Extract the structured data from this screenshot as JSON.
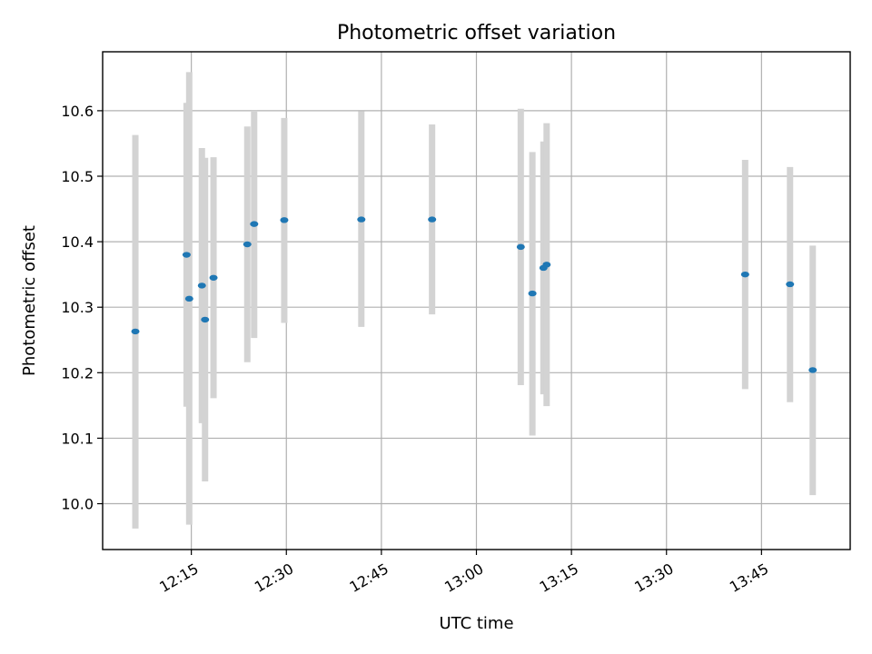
{
  "chart_data": {
    "type": "scatter",
    "title": "Photometric offset variation",
    "xlabel": "UTC time",
    "ylabel": "Photometric offset",
    "xlim": [
      "12:01",
      "13:59"
    ],
    "ylim": [
      9.93,
      10.69
    ],
    "x_ticks": [
      "12:15",
      "12:30",
      "12:45",
      "13:00",
      "13:15",
      "13:30",
      "13:45"
    ],
    "y_ticks": [
      "10.0",
      "10.1",
      "10.2",
      "10.3",
      "10.4",
      "10.5",
      "10.6"
    ],
    "grid": true,
    "colors": {
      "point": "#1f77b4",
      "errorbar": "#d3d3d3",
      "grid": "#b0b0b0"
    },
    "points": [
      {
        "x": "12:06:10",
        "y": 10.263,
        "ymin": 9.962,
        "ymax": 10.563
      },
      {
        "x": "12:14:15",
        "y": 10.38,
        "ymin": 10.148,
        "ymax": 10.612
      },
      {
        "x": "12:14:40",
        "y": 10.313,
        "ymin": 9.968,
        "ymax": 10.659
      },
      {
        "x": "12:16:40",
        "y": 10.333,
        "ymin": 10.123,
        "ymax": 10.543
      },
      {
        "x": "12:17:10",
        "y": 10.281,
        "ymin": 10.034,
        "ymax": 10.528
      },
      {
        "x": "12:18:30",
        "y": 10.345,
        "ymin": 10.161,
        "ymax": 10.529
      },
      {
        "x": "12:23:50",
        "y": 10.396,
        "ymin": 10.216,
        "ymax": 10.576
      },
      {
        "x": "12:24:55",
        "y": 10.427,
        "ymin": 10.253,
        "ymax": 10.6
      },
      {
        "x": "12:29:40",
        "y": 10.433,
        "ymin": 10.276,
        "ymax": 10.589
      },
      {
        "x": "12:41:50",
        "y": 10.434,
        "ymin": 10.27,
        "ymax": 10.599
      },
      {
        "x": "12:53:00",
        "y": 10.434,
        "ymin": 10.289,
        "ymax": 10.579
      },
      {
        "x": "13:07:00",
        "y": 10.392,
        "ymin": 10.181,
        "ymax": 10.603
      },
      {
        "x": "13:08:50",
        "y": 10.321,
        "ymin": 10.104,
        "ymax": 10.537
      },
      {
        "x": "13:10:35",
        "y": 10.36,
        "ymin": 10.167,
        "ymax": 10.553
      },
      {
        "x": "13:11:05",
        "y": 10.365,
        "ymin": 10.149,
        "ymax": 10.581
      },
      {
        "x": "13:42:25",
        "y": 10.35,
        "ymin": 10.175,
        "ymax": 10.525
      },
      {
        "x": "13:49:30",
        "y": 10.335,
        "ymin": 10.155,
        "ymax": 10.514
      },
      {
        "x": "13:53:05",
        "y": 10.204,
        "ymin": 10.013,
        "ymax": 10.394
      }
    ]
  }
}
